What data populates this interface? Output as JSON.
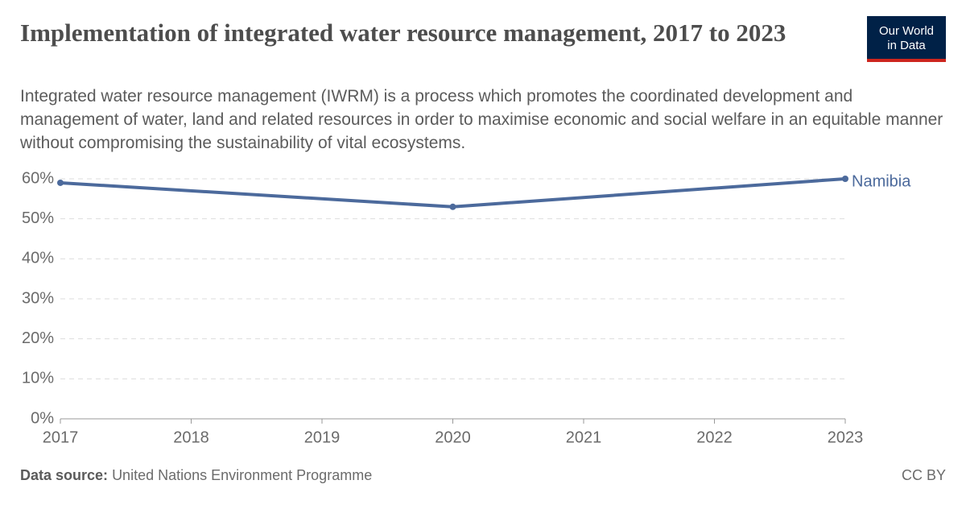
{
  "chart_data": {
    "type": "line",
    "title": "Implementation of integrated water resource management, 2017 to 2023",
    "subtitle": "Integrated water resource management (IWRM) is a process which promotes the coordinated development and management of water, land and related resources in order to maximise economic and social welfare in an equitable manner without compromising the sustainability of vital ecosystems.",
    "x": [
      2017,
      2020,
      2023
    ],
    "series": [
      {
        "name": "Namibia",
        "color": "#4c6a9c",
        "values": [
          59,
          53,
          60
        ]
      }
    ],
    "xlim": [
      2017,
      2023
    ],
    "xticks": [
      2017,
      2018,
      2019,
      2020,
      2021,
      2022,
      2023
    ],
    "ylim": [
      0,
      60
    ],
    "yticks": [
      {
        "value": 0,
        "label": "0%"
      },
      {
        "value": 10,
        "label": "10%"
      },
      {
        "value": 20,
        "label": "20%"
      },
      {
        "value": 30,
        "label": "30%"
      },
      {
        "value": 40,
        "label": "40%"
      },
      {
        "value": 50,
        "label": "50%"
      },
      {
        "value": 60,
        "label": "60%"
      }
    ],
    "grid": true
  },
  "logo": {
    "line1": "Our World",
    "line2": "in Data"
  },
  "footer": {
    "source_label": "Data source:",
    "source": "United Nations Environment Programme",
    "license": "CC BY"
  }
}
